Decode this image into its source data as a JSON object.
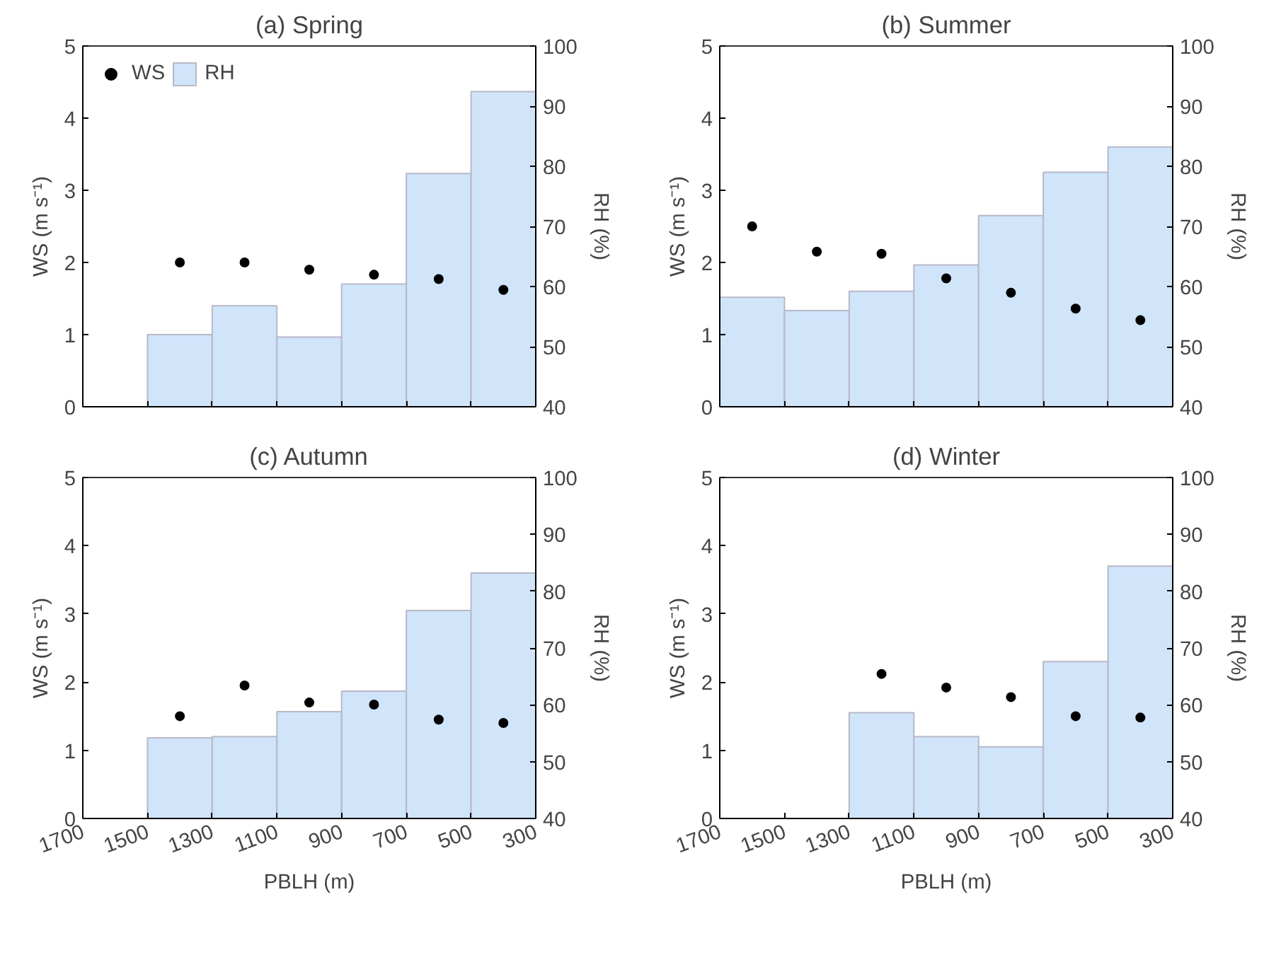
{
  "chart_data": [
    {
      "type": "bar",
      "title": "(a) Spring",
      "ylabel": "WS (m s⁻¹)",
      "y2label": "RH (%)",
      "xlim": [
        1700,
        300
      ],
      "xticks": [
        1700,
        1500,
        1300,
        1100,
        900,
        700,
        500,
        300
      ],
      "ylim": [
        0,
        5
      ],
      "yticks": [
        0,
        1,
        2,
        3,
        4,
        5
      ],
      "y2lim": [
        40,
        100
      ],
      "y2ticks": [
        40,
        50,
        60,
        70,
        80,
        90,
        100
      ],
      "tick_labels": "y",
      "legend": "top left",
      "grid": false,
      "series": [
        {
          "name": "WS",
          "type": "scatter",
          "color": "#000000",
          "x": [
            1400,
            1200,
            1000,
            800,
            600,
            400
          ],
          "values": [
            2.0,
            2.0,
            1.9,
            1.83,
            1.77,
            1.62
          ]
        },
        {
          "name": "RH",
          "axis": "y2",
          "color": "#d0e4fa",
          "x": [
            1400,
            1200,
            1000,
            800,
            600,
            400
          ],
          "values": [
            52,
            56.8,
            51.6,
            60.4,
            78.8,
            92.4
          ]
        }
      ]
    },
    {
      "type": "bar",
      "title": "(b) Summer",
      "ylabel": "WS (m s⁻¹)",
      "y2label": "RH (%)",
      "xlim": [
        1700,
        300
      ],
      "xticks": [
        1700,
        1500,
        1300,
        1100,
        900,
        700,
        500,
        300
      ],
      "ylim": [
        0,
        5
      ],
      "yticks": [
        0,
        1,
        2,
        3,
        4,
        5
      ],
      "y2lim": [
        40,
        100
      ],
      "y2ticks": [
        40,
        50,
        60,
        70,
        80,
        90,
        100
      ],
      "tick_labels": "y",
      "grid": false,
      "series": [
        {
          "type": "scatter",
          "color": "#000000",
          "x": [
            1600,
            1400,
            1200,
            1000,
            800,
            600,
            400
          ],
          "values": [
            2.5,
            2.15,
            2.12,
            1.78,
            1.58,
            1.36,
            1.2
          ]
        },
        {
          "axis": "y2",
          "color": "#d0e4fa",
          "x": [
            1600,
            1400,
            1200,
            1000,
            800,
            600,
            400
          ],
          "values": [
            58.2,
            56,
            59.2,
            63.6,
            71.8,
            79,
            83.2
          ]
        }
      ]
    },
    {
      "type": "bar",
      "title": "(c) Autumn",
      "xlabel": "PBLH (m)",
      "ylabel": "WS (m s⁻¹)",
      "y2label": "RH (%)",
      "xlim": [
        1700,
        300
      ],
      "xticks": [
        1700,
        1500,
        1300,
        1100,
        900,
        700,
        500,
        300
      ],
      "ylim": [
        0,
        5
      ],
      "yticks": [
        0,
        1,
        2,
        3,
        4,
        5
      ],
      "y2lim": [
        40,
        100
      ],
      "y2ticks": [
        40,
        50,
        60,
        70,
        80,
        90,
        100
      ],
      "grid": false,
      "series": [
        {
          "type": "scatter",
          "color": "#000000",
          "x": [
            1400,
            1200,
            1000,
            800,
            600,
            400
          ],
          "values": [
            1.5,
            1.95,
            1.7,
            1.67,
            1.45,
            1.4
          ]
        },
        {
          "axis": "y2",
          "color": "#d0e4fa",
          "x": [
            1400,
            1200,
            1000,
            800,
            600,
            400
          ],
          "values": [
            54.2,
            54.4,
            58.8,
            62.4,
            76.6,
            83.2
          ]
        }
      ]
    },
    {
      "type": "bar",
      "title": "(d) Winter",
      "xlabel": "PBLH (m)",
      "ylabel": "WS (m s⁻¹)",
      "y2label": "RH (%)",
      "xlim": [
        1700,
        300
      ],
      "xticks": [
        1700,
        1500,
        1300,
        1100,
        900,
        700,
        500,
        300
      ],
      "ylim": [
        0,
        5
      ],
      "yticks": [
        0,
        1,
        2,
        3,
        4,
        5
      ],
      "y2lim": [
        40,
        100
      ],
      "y2ticks": [
        40,
        50,
        60,
        70,
        80,
        90,
        100
      ],
      "grid": false,
      "series": [
        {
          "type": "scatter",
          "color": "#000000",
          "x": [
            1200,
            1000,
            800,
            600,
            400
          ],
          "values": [
            2.12,
            1.92,
            1.78,
            1.5,
            1.48
          ]
        },
        {
          "axis": "y2",
          "color": "#d0e4fa",
          "x": [
            1200,
            1000,
            800,
            600,
            400
          ],
          "values": [
            58.6,
            54.4,
            52.6,
            67.6,
            84.4
          ]
        }
      ]
    }
  ]
}
